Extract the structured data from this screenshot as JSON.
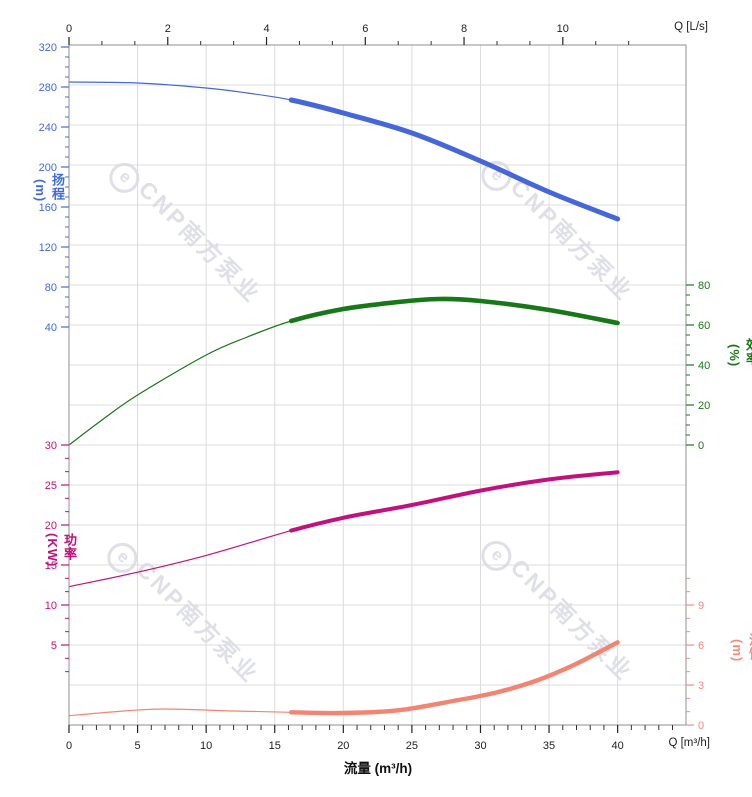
{
  "watermark": {
    "logo_char": "e",
    "text": "CNP南方泵业",
    "color": "#dfdfe8"
  },
  "chart_data": {
    "type": "line",
    "title": "",
    "grid": true,
    "legend": false,
    "x_axis_bottom": {
      "title": "流量 (m³/h)",
      "unit_label": "Q [m³/h]",
      "min": 0,
      "max": 45,
      "major_ticks": [
        0,
        5,
        10,
        15,
        20,
        25,
        30,
        35,
        40
      ],
      "minor_step": 1,
      "color": "#222222"
    },
    "x_axis_top": {
      "unit_label": "Q [L/s]",
      "min": 0,
      "max": 12.5,
      "major_ticks": [
        0,
        2,
        4,
        6,
        8,
        10
      ],
      "minor_step": 0.6667,
      "color": "#222222"
    },
    "y_axes": [
      {
        "id": "head",
        "title": "扬程",
        "unit": "(m)",
        "side": "left",
        "color": "#4169e1",
        "major_ticks": [
          320,
          280,
          240,
          200,
          160,
          120,
          80,
          40
        ],
        "minor_step": 10
      },
      {
        "id": "power",
        "title": "功率",
        "unit": "(KW)",
        "side": "left",
        "color": "#c2117e",
        "major_ticks": [
          30,
          25,
          20,
          15,
          10,
          5
        ],
        "minor_step": 1.6667
      },
      {
        "id": "efficiency",
        "title": "效率",
        "unit": "(%)",
        "side": "right",
        "color": "#177817",
        "major_ticks": [
          80,
          60,
          40,
          20,
          0
        ],
        "minor_step": 5
      },
      {
        "id": "npsh",
        "title": "汽蚀",
        "unit": "(m)",
        "side": "right",
        "color": "#f58b7a",
        "major_ticks": [
          9,
          6,
          3,
          0
        ],
        "minor_step": 1
      }
    ],
    "series": [
      {
        "name": "head",
        "axis": "head",
        "color": "#4667d8",
        "duty_start": 16.2,
        "points": [
          [
            0,
            285
          ],
          [
            5,
            284
          ],
          [
            10,
            279
          ],
          [
            13,
            274
          ],
          [
            16.2,
            267
          ],
          [
            20,
            254
          ],
          [
            25,
            234
          ],
          [
            30,
            206
          ],
          [
            35,
            175
          ],
          [
            40,
            148
          ]
        ]
      },
      {
        "name": "efficiency",
        "axis": "efficiency",
        "color": "#177817",
        "duty_start": 16.2,
        "points": [
          [
            0,
            0
          ],
          [
            2.5,
            13
          ],
          [
            5,
            25
          ],
          [
            10,
            45
          ],
          [
            13,
            54
          ],
          [
            16.2,
            62
          ],
          [
            20,
            68
          ],
          [
            24,
            71.5
          ],
          [
            27,
            73
          ],
          [
            30,
            72
          ],
          [
            35,
            67.5
          ],
          [
            40,
            61
          ]
        ]
      },
      {
        "name": "power",
        "axis": "power",
        "color": "#c2117e",
        "duty_start": 16.2,
        "points": [
          [
            0,
            12.3
          ],
          [
            5,
            14.1
          ],
          [
            10,
            16.2
          ],
          [
            16.2,
            19.3
          ],
          [
            20,
            20.9
          ],
          [
            25,
            22.5
          ],
          [
            30,
            24.3
          ],
          [
            35,
            25.7
          ],
          [
            40,
            26.6
          ]
        ]
      },
      {
        "name": "npsh",
        "axis": "npsh",
        "color": "#f48472",
        "duty_start": 16.2,
        "points": [
          [
            0,
            0.7
          ],
          [
            4,
            1.05
          ],
          [
            7,
            1.2
          ],
          [
            12,
            1.05
          ],
          [
            16.2,
            0.95
          ],
          [
            20,
            0.9
          ],
          [
            24,
            1.1
          ],
          [
            28,
            1.8
          ],
          [
            31,
            2.4
          ],
          [
            34,
            3.3
          ],
          [
            37,
            4.6
          ],
          [
            40,
            6.2
          ]
        ]
      }
    ]
  }
}
